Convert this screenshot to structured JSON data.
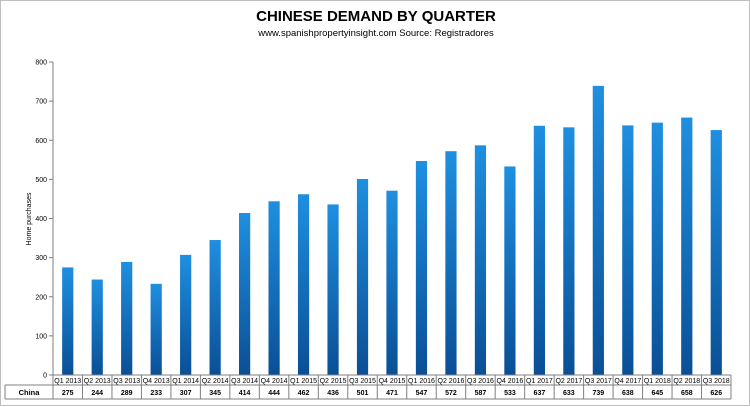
{
  "chart_data": {
    "type": "bar",
    "title": "CHINESE DEMAND BY QUARTER",
    "subtitle": "www.spanishpropertyinsight.com  Source: Registradores",
    "ylabel": "Home purchases",
    "xlabel": "",
    "ylim": [
      0,
      800
    ],
    "yticks": [
      0,
      100,
      200,
      300,
      400,
      500,
      600,
      700,
      800
    ],
    "grid": false,
    "legend": "data table",
    "categories": [
      "Q1 2013",
      "Q2 2013",
      "Q3 2013",
      "Q4 2013",
      "Q1 2014",
      "Q2 2014",
      "Q3 2014",
      "Q4 2014",
      "Q1 2015",
      "Q2 2015",
      "Q3 2015",
      "Q4 2015",
      "Q1 2016",
      "Q2 2016",
      "Q3 2016",
      "Q4 2016",
      "Q1 2017",
      "Q2 2017",
      "Q3 2017",
      "Q4 2017",
      "Q1 2018",
      "Q2 2018",
      "Q3 2018"
    ],
    "series": [
      {
        "name": "China",
        "values": [
          275,
          244,
          289,
          233,
          307,
          345,
          414,
          444,
          462,
          436,
          501,
          471,
          547,
          572,
          587,
          533,
          637,
          633,
          739,
          638,
          645,
          658,
          626
        ]
      }
    ],
    "bar_color_top": "#1f8fe0",
    "bar_color_bottom": "#0a4f96"
  }
}
